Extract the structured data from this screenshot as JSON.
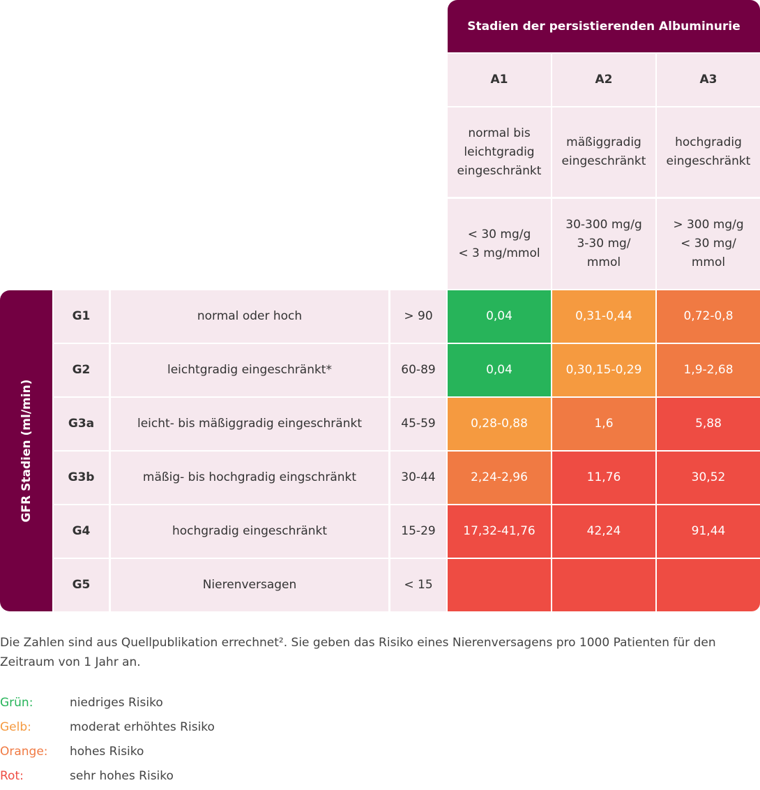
{
  "header": {
    "title": "Stadien der persistierenden Albuminurie",
    "columns": [
      {
        "code": "A1",
        "description": "normal bis leichtgradig eingeschränkt",
        "range": "< 30 mg/g\n< 3 mg/mmol"
      },
      {
        "code": "A2",
        "description": "mäßiggradig eingeschränkt",
        "range": "30-300 mg/g\n3-30 mg/\nmmol"
      },
      {
        "code": "A3",
        "description": "hochgradig eingeschränkt",
        "range": "> 300 mg/g\n< 30 mg/\nmmol"
      }
    ]
  },
  "side_label": "GFR Stadien (ml/min)",
  "rows": [
    {
      "stage": "G1",
      "description": "normal oder hoch",
      "gfr": "> 90",
      "values": [
        "0,04",
        "0,31-0,44",
        "0,72-0,8"
      ],
      "risk": [
        "green",
        "yellow",
        "orange"
      ]
    },
    {
      "stage": "G2",
      "description": "leichtgradig eingeschränkt*",
      "gfr": "60-89",
      "values": [
        "0,04",
        "0,30,15-0,29",
        "1,9-2,68"
      ],
      "risk": [
        "green",
        "yellow",
        "orange"
      ]
    },
    {
      "stage": "G3a",
      "description": "leicht- bis mäßiggradig eingeschränkt",
      "gfr": "45-59",
      "values": [
        "0,28-0,88",
        "1,6",
        "5,88"
      ],
      "risk": [
        "yellow",
        "orange",
        "red"
      ]
    },
    {
      "stage": "G3b",
      "description": "mäßig- bis hochgradig eingschränkt",
      "gfr": "30-44",
      "values": [
        "2,24-2,96",
        "11,76",
        "30,52"
      ],
      "risk": [
        "orange",
        "red",
        "red"
      ]
    },
    {
      "stage": "G4",
      "description": "hochgradig eingeschränkt",
      "gfr": "15-29",
      "values": [
        "17,32-41,76",
        "42,24",
        "91,44"
      ],
      "risk": [
        "red",
        "red",
        "red"
      ]
    },
    {
      "stage": "G5",
      "description": "Nierenversagen",
      "gfr": "< 15",
      "values": [
        "",
        "",
        ""
      ],
      "risk": [
        "red",
        "red",
        "red"
      ]
    }
  ],
  "colors": {
    "green": "#27b45a",
    "yellow": "#f59a40",
    "orange": "#f07a43",
    "red": "#ee4c43",
    "header": "#730042",
    "pink": "#f6e8ee"
  },
  "footnote": "Die Zahlen sind aus Quellpublikation errechnet². Sie geben das Risiko eines Nierenversagens pro 1000 Patienten für den Zeitraum von 1 Jahr an.",
  "legend": [
    {
      "key": "Grün:",
      "label": "niedriges Risiko",
      "color": "#27b45a"
    },
    {
      "key": "Gelb:",
      "label": "moderat erhöhtes Risiko",
      "color": "#f59a40"
    },
    {
      "key": "Orange:",
      "label": "hohes Risiko",
      "color": "#f07a43"
    },
    {
      "key": "Rot:",
      "label": "sehr hohes Risiko",
      "color": "#ee4c43"
    }
  ],
  "chart_data": {
    "type": "heatmap",
    "title": "Stadien der persistierenden Albuminurie",
    "row_axis_label": "GFR Stadien (ml/min)",
    "columns": [
      "A1",
      "A2",
      "A3"
    ],
    "rows": [
      "G1",
      "G2",
      "G3a",
      "G3b",
      "G4",
      "G5"
    ],
    "values": [
      [
        "0,04",
        "0,31-0,44",
        "0,72-0,8"
      ],
      [
        "0,04",
        "0,30,15-0,29",
        "1,9-2,68"
      ],
      [
        "0,28-0,88",
        "1,6",
        "5,88"
      ],
      [
        "2,24-2,96",
        "11,76",
        "30,52"
      ],
      [
        "17,32-41,76",
        "42,24",
        "91,44"
      ],
      [
        "",
        "",
        ""
      ]
    ],
    "risk_categories": [
      [
        "green",
        "yellow",
        "orange"
      ],
      [
        "green",
        "yellow",
        "orange"
      ],
      [
        "yellow",
        "orange",
        "red"
      ],
      [
        "orange",
        "red",
        "red"
      ],
      [
        "red",
        "red",
        "red"
      ],
      [
        "red",
        "red",
        "red"
      ]
    ]
  }
}
